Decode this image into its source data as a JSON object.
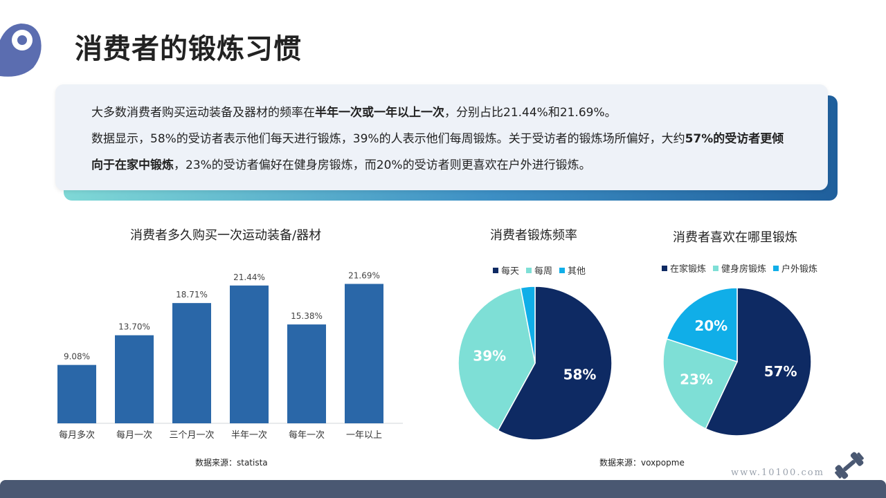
{
  "title": "消费者的锻炼习惯",
  "summary": {
    "line1_pre": "大多数消费者购买运动装备及器材的频率在",
    "line1_bold": "半年一次或一年以上一次",
    "line1_post": "，分别占比21.44%和21.69%。",
    "line2_pre": "数据显示，58%的受访者表示他们每天进行锻炼，39%的人表示他们每周锻炼。关于受访者的锻炼场所偏好，大约",
    "line2_bold": "57%的受访者更倾向于在家中锻炼",
    "line2_post": "，23%的受访者偏好在健身房锻炼，而20%的受访者则更喜欢在户外进行锻炼。"
  },
  "chart_data": [
    {
      "type": "bar",
      "title": "消费者多久购买一次运动装备/器材",
      "categories": [
        "每月多次",
        "每月一次",
        "三个月一次",
        "半年一次",
        "每年一次",
        "一年以上"
      ],
      "values": [
        9.08,
        13.7,
        18.71,
        21.44,
        15.38,
        21.69
      ],
      "value_labels": [
        "9.08%",
        "13.70%",
        "18.71%",
        "21.44%",
        "15.38%",
        "21.69%"
      ],
      "ylim": [
        0,
        25
      ],
      "color": "#2a67a8",
      "grid": false
    },
    {
      "type": "pie",
      "title": "消费者锻炼频率",
      "labels": [
        "每天",
        "每周",
        "其他"
      ],
      "values": [
        58,
        39,
        3
      ],
      "slice_labels": [
        "58%",
        "39%",
        ""
      ],
      "colors": [
        "#0e2a63",
        "#7edfd6",
        "#10aee8"
      ],
      "legend": "top"
    },
    {
      "type": "pie",
      "title": "消费者喜欢在哪里锻炼",
      "labels": [
        "在家锻炼",
        "健身房锻炼",
        "户外锻炼"
      ],
      "values": [
        57,
        23,
        20
      ],
      "slice_labels": [
        "57%",
        "23%",
        "20%"
      ],
      "colors": [
        "#0e2a63",
        "#7edfd6",
        "#10aee8"
      ],
      "legend": "top"
    }
  ],
  "sources": {
    "bar": "数据来源：statista",
    "pie": "数据来源：voxpopme"
  },
  "website": "www.10100.com",
  "colors": {
    "accent_dark": "#0e2a63",
    "accent_teal": "#7edfd6",
    "accent_cyan": "#10aee8",
    "bar": "#2a67a8",
    "footer": "#4a5872"
  }
}
